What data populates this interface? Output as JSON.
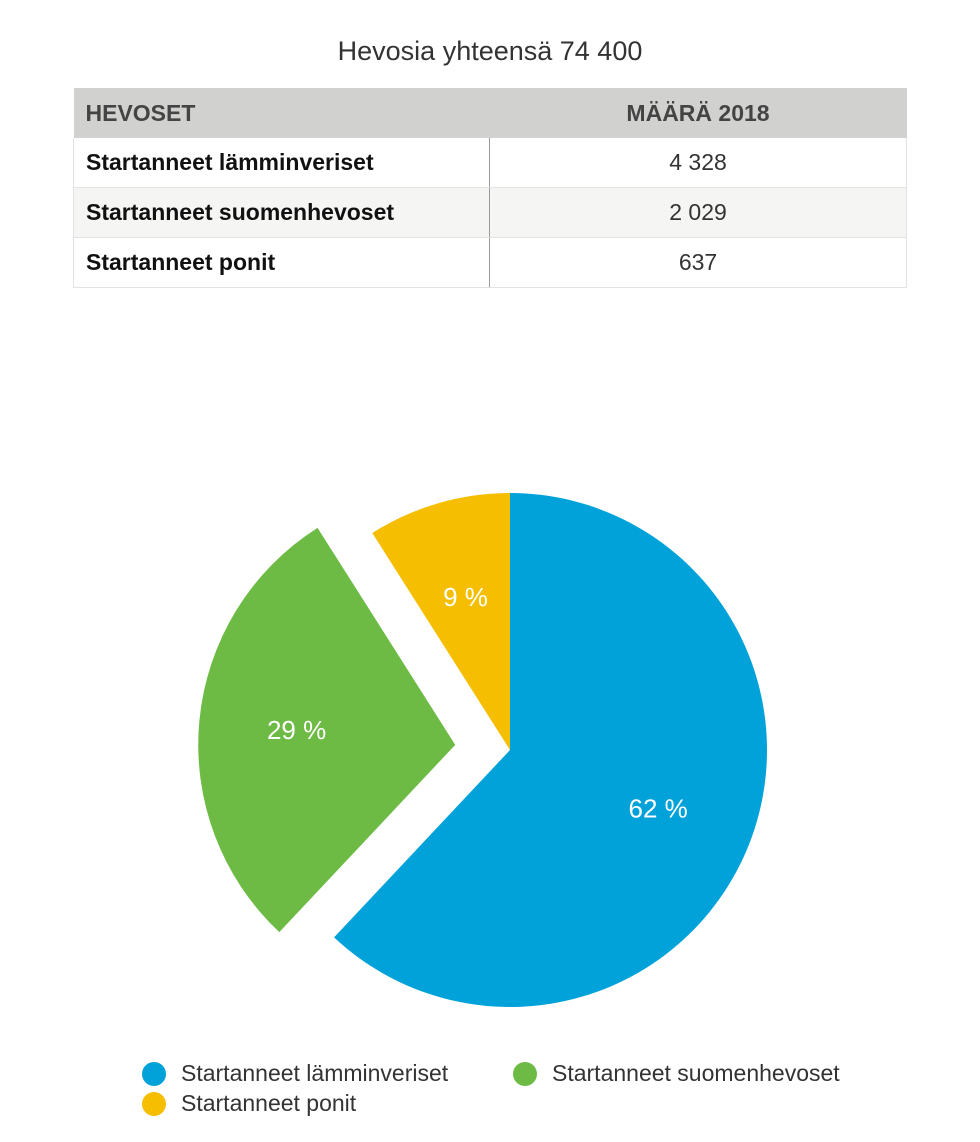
{
  "title": "Hevosia yhteensä 74 400",
  "table": {
    "headers": [
      "HEVOSET",
      "MÄÄRÄ 2018"
    ],
    "rows": [
      {
        "label": "Startanneet lämminveriset",
        "value": "4 328"
      },
      {
        "label": "Startanneet suomenhevoset",
        "value": "2 029"
      },
      {
        "label": "Startanneet ponit",
        "value": "637"
      }
    ]
  },
  "chart_data": {
    "type": "pie",
    "slices": [
      {
        "name": "Startanneet lämminveriset",
        "value": 62,
        "label": "62 %",
        "color": "#00a2d9",
        "exploded": false
      },
      {
        "name": "Startanneet suomenhevoset",
        "value": 29,
        "label": "29 %",
        "color": "#6dbb45",
        "exploded": true
      },
      {
        "name": "Startanneet ponit",
        "value": 9,
        "label": "9 %",
        "color": "#f5be00",
        "exploded": false
      }
    ],
    "start": "top",
    "direction": "clockwise",
    "legend": "bottom"
  }
}
